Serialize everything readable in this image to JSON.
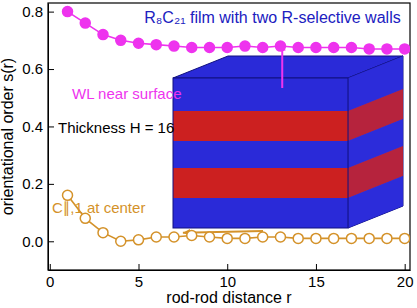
{
  "chart_data": {
    "type": "line",
    "title": "R₈C₂₁ film with two R-selective walls",
    "annotations": [
      "Thickness H = 16"
    ],
    "x_label": "rod-rod distance r",
    "y_label": "orientational order s(r)",
    "x": [
      1,
      2,
      3,
      4,
      5,
      6,
      7,
      8,
      9,
      10,
      11,
      12,
      13,
      14,
      15,
      16,
      17,
      18,
      19,
      20
    ],
    "series": [
      {
        "name": "WL near surface",
        "color": "#ee33ee",
        "marker": "circle",
        "line_style": "solid",
        "values": [
          0.8,
          0.76,
          0.72,
          0.7,
          0.69,
          0.685,
          0.68,
          0.675,
          0.675,
          0.675,
          0.68,
          0.675,
          0.68,
          0.675,
          0.675,
          0.675,
          0.675,
          0.67,
          0.67,
          0.67
        ]
      },
      {
        "name": "C∥,1 at center",
        "color": "#d4922a",
        "marker": "open-circle",
        "line_style": "solid",
        "values": [
          0.16,
          0.08,
          0.03,
          0.0,
          0.005,
          0.015,
          0.015,
          0.02,
          0.015,
          0.01,
          0.01,
          0.015,
          0.015,
          0.01,
          0.01,
          0.01,
          0.01,
          0.01,
          0.01,
          0.01
        ]
      }
    ],
    "xlim": [
      -0.1,
      20.3
    ],
    "xticks": [
      0,
      5,
      10,
      15,
      20
    ],
    "ylim": [
      -0.1,
      0.83
    ],
    "yticks": [
      {
        "value": 0,
        "label": "0.0"
      },
      0.2,
      0.4,
      0.6,
      0.8
    ]
  }
}
